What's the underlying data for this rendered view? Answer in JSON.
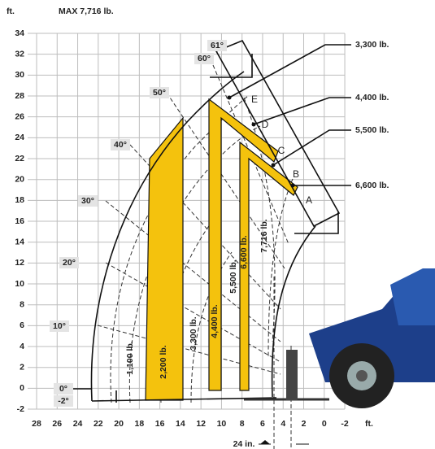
{
  "header": {
    "unit": "ft.",
    "max_load": "MAX 7,716 lb."
  },
  "y_axis": {
    "labels": [
      "34",
      "32",
      "30",
      "28",
      "26",
      "24",
      "22",
      "20",
      "18",
      "16",
      "14",
      "12",
      "10",
      "8",
      "6",
      "4",
      "2",
      "0",
      "-2"
    ]
  },
  "x_axis": {
    "labels": [
      "28",
      "26",
      "24",
      "22",
      "20",
      "18",
      "16",
      "14",
      "12",
      "10",
      "8",
      "6",
      "4",
      "2",
      "0",
      "-2"
    ],
    "unit": "ft."
  },
  "angles": [
    "61°",
    "60°",
    "50°",
    "40°",
    "30°",
    "20°",
    "10°",
    "0°",
    "-2°"
  ],
  "load_callouts": [
    "3,300 lb.",
    "4,400 lb.",
    "5,500 lb.",
    "6,600 lb."
  ],
  "zone_labels": [
    "1,100 lb.",
    "2,200 lb.",
    "3,300 lb.",
    "4,400 lb.",
    "5,500 lb.",
    "6,600 lb.",
    "7,716 lb."
  ],
  "points": [
    "A",
    "B",
    "C",
    "D",
    "E"
  ],
  "fork_gap": "24 in."
}
